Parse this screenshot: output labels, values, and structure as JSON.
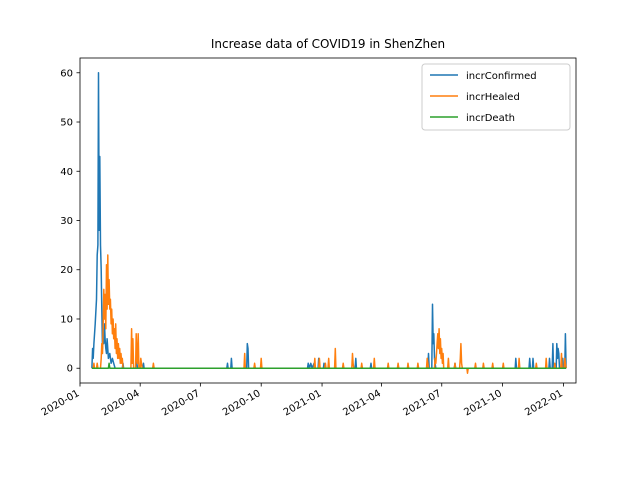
{
  "chart_data": {
    "type": "line",
    "title": "Increase data of COVID19 in ShenZhen",
    "xlabel": "",
    "ylabel": "",
    "x_axis_type": "date",
    "xlim": [
      "2020-01-01",
      "2022-01-20"
    ],
    "ylim": [
      -3,
      63
    ],
    "x_ticks": [
      "2020-01",
      "2020-04",
      "2020-07",
      "2020-10",
      "2021-01",
      "2021-04",
      "2021-07",
      "2021-10",
      "2022-01"
    ],
    "y_ticks": [
      0,
      10,
      20,
      30,
      40,
      50,
      60
    ],
    "grid": false,
    "legend_position": "top-right",
    "series": [
      {
        "name": "incrConfirmed",
        "color": "#1f77b4",
        "points": [
          [
            "2020-01-19",
            0
          ],
          [
            "2020-01-20",
            4
          ],
          [
            "2020-01-21",
            2
          ],
          [
            "2020-01-22",
            5
          ],
          [
            "2020-01-24",
            9
          ],
          [
            "2020-01-26",
            14
          ],
          [
            "2020-01-27",
            23
          ],
          [
            "2020-01-28",
            25
          ],
          [
            "2020-01-29",
            60
          ],
          [
            "2020-01-30",
            28
          ],
          [
            "2020-01-31",
            43
          ],
          [
            "2020-02-01",
            25
          ],
          [
            "2020-02-02",
            20
          ],
          [
            "2020-02-03",
            12
          ],
          [
            "2020-02-04",
            4
          ],
          [
            "2020-02-05",
            8
          ],
          [
            "2020-02-06",
            5
          ],
          [
            "2020-02-07",
            9
          ],
          [
            "2020-02-08",
            6
          ],
          [
            "2020-02-09",
            4
          ],
          [
            "2020-02-10",
            3
          ],
          [
            "2020-02-11",
            6
          ],
          [
            "2020-02-13",
            2
          ],
          [
            "2020-02-15",
            3
          ],
          [
            "2020-02-17",
            1
          ],
          [
            "2020-02-19",
            2
          ],
          [
            "2020-02-21",
            1
          ],
          [
            "2020-02-23",
            0
          ],
          [
            "2020-03-05",
            0
          ],
          [
            "2020-03-06",
            1
          ],
          [
            "2020-03-07",
            0
          ],
          [
            "2020-03-25",
            0
          ],
          [
            "2020-03-26",
            2
          ],
          [
            "2020-03-27",
            1
          ],
          [
            "2020-03-28",
            0
          ],
          [
            "2020-04-05",
            0
          ],
          [
            "2020-04-06",
            1
          ],
          [
            "2020-04-07",
            0
          ],
          [
            "2020-08-10",
            0
          ],
          [
            "2020-08-11",
            1
          ],
          [
            "2020-08-12",
            0
          ],
          [
            "2020-08-16",
            0
          ],
          [
            "2020-08-17",
            2
          ],
          [
            "2020-08-18",
            0
          ],
          [
            "2020-09-09",
            0
          ],
          [
            "2020-09-10",
            5
          ],
          [
            "2020-09-11",
            4
          ],
          [
            "2020-09-12",
            0
          ],
          [
            "2020-12-10",
            0
          ],
          [
            "2020-12-11",
            1
          ],
          [
            "2020-12-13",
            0
          ],
          [
            "2020-12-15",
            1
          ],
          [
            "2020-12-17",
            0
          ],
          [
            "2020-12-20",
            1
          ],
          [
            "2020-12-22",
            0
          ],
          [
            "2020-12-26",
            0
          ],
          [
            "2020-12-27",
            2
          ],
          [
            "2020-12-28",
            0
          ],
          [
            "2021-01-03",
            0
          ],
          [
            "2021-01-04",
            1
          ],
          [
            "2021-01-05",
            0
          ],
          [
            "2021-02-20",
            0
          ],
          [
            "2021-02-21",
            2
          ],
          [
            "2021-02-22",
            0
          ],
          [
            "2021-03-15",
            0
          ],
          [
            "2021-03-16",
            1
          ],
          [
            "2021-03-17",
            0
          ],
          [
            "2021-06-10",
            0
          ],
          [
            "2021-06-11",
            3
          ],
          [
            "2021-06-12",
            0
          ],
          [
            "2021-06-16",
            0
          ],
          [
            "2021-06-17",
            13
          ],
          [
            "2021-06-18",
            5
          ],
          [
            "2021-06-19",
            7
          ],
          [
            "2021-06-20",
            2
          ],
          [
            "2021-06-21",
            1
          ],
          [
            "2021-06-22",
            0
          ],
          [
            "2021-07-20",
            0
          ],
          [
            "2021-07-21",
            1
          ],
          [
            "2021-07-22",
            0
          ],
          [
            "2021-10-20",
            0
          ],
          [
            "2021-10-21",
            2
          ],
          [
            "2021-10-22",
            0
          ],
          [
            "2021-11-10",
            0
          ],
          [
            "2021-11-11",
            2
          ],
          [
            "2021-11-12",
            0
          ],
          [
            "2021-11-15",
            0
          ],
          [
            "2021-11-16",
            2
          ],
          [
            "2021-11-17",
            0
          ],
          [
            "2021-12-10",
            0
          ],
          [
            "2021-12-11",
            2
          ],
          [
            "2021-12-12",
            0
          ],
          [
            "2021-12-15",
            0
          ],
          [
            "2021-12-16",
            5
          ],
          [
            "2021-12-17",
            0
          ],
          [
            "2021-12-21",
            0
          ],
          [
            "2021-12-22",
            5
          ],
          [
            "2021-12-23",
            2
          ],
          [
            "2021-12-24",
            4
          ],
          [
            "2021-12-25",
            3
          ],
          [
            "2021-12-26",
            0
          ],
          [
            "2021-12-30",
            0
          ],
          [
            "2021-12-31",
            2
          ],
          [
            "2022-01-01",
            0
          ],
          [
            "2022-01-03",
            0
          ],
          [
            "2022-01-04",
            7
          ],
          [
            "2022-01-05",
            0
          ]
        ]
      },
      {
        "name": "incrHealed",
        "color": "#ff7f0e",
        "points": [
          [
            "2020-01-19",
            0
          ],
          [
            "2020-01-21",
            0
          ],
          [
            "2020-01-22",
            1
          ],
          [
            "2020-01-23",
            0
          ],
          [
            "2020-01-26",
            0
          ],
          [
            "2020-01-27",
            1
          ],
          [
            "2020-01-28",
            0
          ],
          [
            "2020-02-01",
            0
          ],
          [
            "2020-02-02",
            2
          ],
          [
            "2020-02-03",
            5
          ],
          [
            "2020-02-04",
            3
          ],
          [
            "2020-02-05",
            8
          ],
          [
            "2020-02-06",
            16
          ],
          [
            "2020-02-07",
            10
          ],
          [
            "2020-02-08",
            15
          ],
          [
            "2020-02-09",
            8
          ],
          [
            "2020-02-10",
            21
          ],
          [
            "2020-02-11",
            12
          ],
          [
            "2020-02-12",
            23
          ],
          [
            "2020-02-13",
            13
          ],
          [
            "2020-02-14",
            18
          ],
          [
            "2020-02-15",
            12
          ],
          [
            "2020-02-16",
            14
          ],
          [
            "2020-02-17",
            9
          ],
          [
            "2020-02-18",
            12
          ],
          [
            "2020-02-19",
            7
          ],
          [
            "2020-02-20",
            10
          ],
          [
            "2020-02-21",
            6
          ],
          [
            "2020-02-22",
            8
          ],
          [
            "2020-02-23",
            4
          ],
          [
            "2020-02-24",
            9
          ],
          [
            "2020-02-25",
            3
          ],
          [
            "2020-02-26",
            6
          ],
          [
            "2020-02-27",
            2
          ],
          [
            "2020-02-28",
            5
          ],
          [
            "2020-02-29",
            2
          ],
          [
            "2020-03-01",
            4
          ],
          [
            "2020-03-02",
            1
          ],
          [
            "2020-03-03",
            3
          ],
          [
            "2020-03-04",
            1
          ],
          [
            "2020-03-05",
            2
          ],
          [
            "2020-03-06",
            0
          ],
          [
            "2020-03-18",
            0
          ],
          [
            "2020-03-19",
            8
          ],
          [
            "2020-03-20",
            1
          ],
          [
            "2020-03-21",
            6
          ],
          [
            "2020-03-22",
            0
          ],
          [
            "2020-03-25",
            0
          ],
          [
            "2020-03-26",
            7
          ],
          [
            "2020-03-27",
            2
          ],
          [
            "2020-03-28",
            1
          ],
          [
            "2020-03-29",
            7
          ],
          [
            "2020-03-30",
            0
          ],
          [
            "2020-04-01",
            0
          ],
          [
            "2020-04-02",
            2
          ],
          [
            "2020-04-03",
            1
          ],
          [
            "2020-04-04",
            0
          ],
          [
            "2020-04-20",
            0
          ],
          [
            "2020-04-21",
            1
          ],
          [
            "2020-04-22",
            0
          ],
          [
            "2020-09-05",
            0
          ],
          [
            "2020-09-06",
            3
          ],
          [
            "2020-09-07",
            0
          ],
          [
            "2020-09-20",
            0
          ],
          [
            "2020-09-21",
            1
          ],
          [
            "2020-09-22",
            0
          ],
          [
            "2020-09-30",
            0
          ],
          [
            "2020-10-01",
            2
          ],
          [
            "2020-10-02",
            0
          ],
          [
            "2020-12-20",
            0
          ],
          [
            "2020-12-21",
            2
          ],
          [
            "2020-12-22",
            0
          ],
          [
            "2020-12-27",
            0
          ],
          [
            "2020-12-28",
            2
          ],
          [
            "2020-12-29",
            0
          ],
          [
            "2021-01-05",
            0
          ],
          [
            "2021-01-06",
            1
          ],
          [
            "2021-01-07",
            0
          ],
          [
            "2021-01-10",
            0
          ],
          [
            "2021-01-11",
            2
          ],
          [
            "2021-01-12",
            0
          ],
          [
            "2021-01-20",
            0
          ],
          [
            "2021-01-21",
            4
          ],
          [
            "2021-01-22",
            0
          ],
          [
            "2021-02-01",
            0
          ],
          [
            "2021-02-02",
            1
          ],
          [
            "2021-02-03",
            0
          ],
          [
            "2021-02-15",
            0
          ],
          [
            "2021-02-16",
            3
          ],
          [
            "2021-02-17",
            1
          ],
          [
            "2021-02-18",
            0
          ],
          [
            "2021-03-01",
            0
          ],
          [
            "2021-03-02",
            1
          ],
          [
            "2021-03-03",
            0
          ],
          [
            "2021-03-20",
            0
          ],
          [
            "2021-03-21",
            2
          ],
          [
            "2021-03-22",
            0
          ],
          [
            "2021-04-10",
            0
          ],
          [
            "2021-04-11",
            1
          ],
          [
            "2021-04-12",
            0
          ],
          [
            "2021-04-25",
            0
          ],
          [
            "2021-04-26",
            1
          ],
          [
            "2021-04-27",
            0
          ],
          [
            "2021-05-10",
            0
          ],
          [
            "2021-05-11",
            1
          ],
          [
            "2021-05-12",
            0
          ],
          [
            "2021-05-25",
            0
          ],
          [
            "2021-05-26",
            1
          ],
          [
            "2021-05-27",
            0
          ],
          [
            "2021-06-08",
            0
          ],
          [
            "2021-06-09",
            2
          ],
          [
            "2021-06-10",
            1
          ],
          [
            "2021-06-11",
            0
          ],
          [
            "2021-06-20",
            0
          ],
          [
            "2021-06-21",
            2
          ],
          [
            "2021-06-22",
            1
          ],
          [
            "2021-06-23",
            3
          ],
          [
            "2021-06-24",
            5
          ],
          [
            "2021-06-25",
            7
          ],
          [
            "2021-06-26",
            4
          ],
          [
            "2021-06-27",
            8
          ],
          [
            "2021-06-28",
            3
          ],
          [
            "2021-06-29",
            6
          ],
          [
            "2021-06-30",
            2
          ],
          [
            "2021-07-01",
            4
          ],
          [
            "2021-07-02",
            1
          ],
          [
            "2021-07-03",
            3
          ],
          [
            "2021-07-04",
            0
          ],
          [
            "2021-07-10",
            0
          ],
          [
            "2021-07-11",
            2
          ],
          [
            "2021-07-12",
            0
          ],
          [
            "2021-07-20",
            0
          ],
          [
            "2021-07-21",
            1
          ],
          [
            "2021-07-22",
            0
          ],
          [
            "2021-07-28",
            0
          ],
          [
            "2021-07-29",
            2
          ],
          [
            "2021-07-30",
            5
          ],
          [
            "2021-07-31",
            1
          ],
          [
            "2021-08-01",
            0
          ],
          [
            "2021-08-08",
            0
          ],
          [
            "2021-08-09",
            -1
          ],
          [
            "2021-08-10",
            0
          ],
          [
            "2021-08-20",
            0
          ],
          [
            "2021-08-21",
            1
          ],
          [
            "2021-08-22",
            0
          ],
          [
            "2021-09-01",
            0
          ],
          [
            "2021-09-02",
            1
          ],
          [
            "2021-09-03",
            0
          ],
          [
            "2021-09-15",
            0
          ],
          [
            "2021-09-16",
            1
          ],
          [
            "2021-09-17",
            0
          ],
          [
            "2021-10-01",
            0
          ],
          [
            "2021-10-02",
            1
          ],
          [
            "2021-10-03",
            0
          ],
          [
            "2021-10-25",
            0
          ],
          [
            "2021-10-26",
            2
          ],
          [
            "2021-10-27",
            0
          ],
          [
            "2021-11-20",
            0
          ],
          [
            "2021-11-21",
            1
          ],
          [
            "2021-11-22",
            0
          ],
          [
            "2021-12-05",
            0
          ],
          [
            "2021-12-06",
            2
          ],
          [
            "2021-12-07",
            0
          ],
          [
            "2021-12-18",
            0
          ],
          [
            "2021-12-19",
            1
          ],
          [
            "2021-12-20",
            0
          ],
          [
            "2021-12-28",
            0
          ],
          [
            "2021-12-29",
            3
          ],
          [
            "2021-12-30",
            0
          ],
          [
            "2022-01-02",
            0
          ],
          [
            "2022-01-03",
            2
          ],
          [
            "2022-01-04",
            1
          ],
          [
            "2022-01-05",
            0
          ]
        ]
      },
      {
        "name": "incrDeath",
        "color": "#2ca02c",
        "points": [
          [
            "2020-01-19",
            0
          ],
          [
            "2020-02-13",
            0
          ],
          [
            "2020-02-14",
            1
          ],
          [
            "2020-02-15",
            0
          ],
          [
            "2022-01-05",
            0
          ]
        ]
      }
    ]
  }
}
